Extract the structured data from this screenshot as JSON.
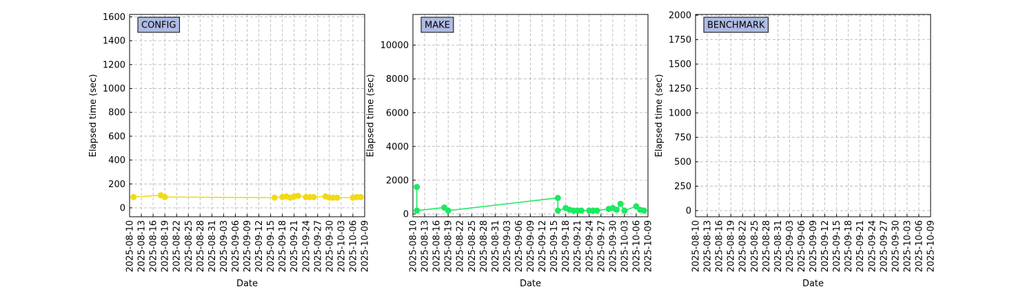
{
  "chart_data": [
    {
      "type": "line",
      "title": "CONFIG",
      "xlabel": "Date",
      "ylabel": "Elapsed time (sec)",
      "color": "#f2da16",
      "grid": true,
      "x": [
        "2025-08-11",
        "2025-08-18",
        "2025-08-19",
        "2025-09-16",
        "2025-09-18",
        "2025-09-19",
        "2025-09-20",
        "2025-09-21",
        "2025-09-22",
        "2025-09-24",
        "2025-09-25",
        "2025-09-26",
        "2025-09-29",
        "2025-09-30",
        "2025-10-01",
        "2025-10-02",
        "2025-10-06",
        "2025-10-07",
        "2025-10-08"
      ],
      "values": [
        90,
        105,
        90,
        85,
        90,
        95,
        85,
        95,
        100,
        90,
        90,
        90,
        95,
        85,
        85,
        85,
        85,
        90,
        90
      ],
      "xlim": [
        "2025-08-10",
        "2025-10-09"
      ],
      "ylim": [
        -75,
        1620
      ],
      "xticks": [
        "2025-08-10",
        "2025-08-13",
        "2025-08-16",
        "2025-08-19",
        "2025-08-22",
        "2025-08-25",
        "2025-08-28",
        "2025-08-31",
        "2025-09-03",
        "2025-09-06",
        "2025-09-09",
        "2025-09-12",
        "2025-09-15",
        "2025-09-18",
        "2025-09-21",
        "2025-09-24",
        "2025-09-27",
        "2025-09-30",
        "2025-10-03",
        "2025-10-06",
        "2025-10-09"
      ],
      "yticks": [
        0,
        200,
        400,
        600,
        800,
        1000,
        1200,
        1400,
        1600
      ]
    },
    {
      "type": "line",
      "title": "MAKE",
      "xlabel": "Date",
      "ylabel": "Elapsed time (sec)",
      "color": "#1ee862",
      "grid": true,
      "x": [
        "2025-08-11",
        "2025-08-11",
        "2025-08-18",
        "2025-08-19",
        "2025-09-16",
        "2025-09-16",
        "2025-09-18",
        "2025-09-19",
        "2025-09-20",
        "2025-09-21",
        "2025-09-22",
        "2025-09-24",
        "2025-09-25",
        "2025-09-26",
        "2025-09-29",
        "2025-09-30",
        "2025-10-01",
        "2025-10-02",
        "2025-10-03",
        "2025-10-06",
        "2025-10-07",
        "2025-10-08"
      ],
      "values": [
        1600,
        200,
        380,
        200,
        950,
        200,
        350,
        250,
        200,
        200,
        200,
        200,
        200,
        200,
        300,
        350,
        250,
        600,
        200,
        450,
        250,
        200
      ],
      "xlim": [
        "2025-08-10",
        "2025-10-09"
      ],
      "ylim": [
        -165,
        11820
      ],
      "xticks": [
        "2025-08-10",
        "2025-08-13",
        "2025-08-16",
        "2025-08-19",
        "2025-08-22",
        "2025-08-25",
        "2025-08-28",
        "2025-08-31",
        "2025-09-03",
        "2025-09-06",
        "2025-09-09",
        "2025-09-12",
        "2025-09-15",
        "2025-09-18",
        "2025-09-21",
        "2025-09-24",
        "2025-09-27",
        "2025-09-30",
        "2025-10-03",
        "2025-10-06",
        "2025-10-09"
      ],
      "yticks": [
        0,
        2000,
        4000,
        6000,
        8000,
        10000
      ]
    },
    {
      "type": "line",
      "title": "BENCHMARK",
      "xlabel": "Date",
      "ylabel": "Elapsed time (sec)",
      "color": "#1f77b4",
      "grid": true,
      "x": [],
      "values": [],
      "xlim": [
        "2025-08-10",
        "2025-10-09"
      ],
      "ylim": [
        -63,
        2008
      ],
      "xticks": [
        "2025-08-10",
        "2025-08-13",
        "2025-08-16",
        "2025-08-19",
        "2025-08-22",
        "2025-08-25",
        "2025-08-28",
        "2025-08-31",
        "2025-09-03",
        "2025-09-06",
        "2025-09-09",
        "2025-09-12",
        "2025-09-15",
        "2025-09-18",
        "2025-09-21",
        "2025-09-24",
        "2025-09-27",
        "2025-09-30",
        "2025-10-03",
        "2025-10-06",
        "2025-10-09"
      ],
      "yticks": [
        0,
        250,
        500,
        750,
        1000,
        1250,
        1500,
        1750,
        2000
      ]
    }
  ]
}
